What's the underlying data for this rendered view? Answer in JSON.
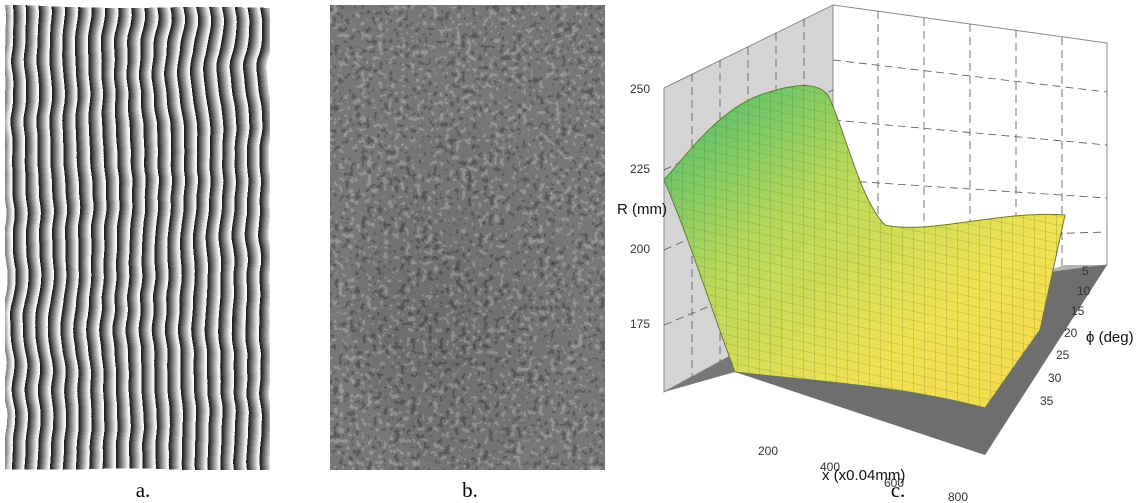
{
  "panels": [
    {
      "caption": "a."
    },
    {
      "caption": "b."
    },
    {
      "caption": "c.",
      "z_label": "R (mm)",
      "z_ticks": [
        250,
        225,
        200,
        175
      ],
      "x_label": "x (x0.04mm)",
      "x_ticks": [
        200,
        400,
        600,
        800
      ],
      "y_label": "ϕ (deg)",
      "y_ticks": [
        5,
        10,
        15,
        20,
        25,
        30,
        35
      ]
    }
  ]
}
